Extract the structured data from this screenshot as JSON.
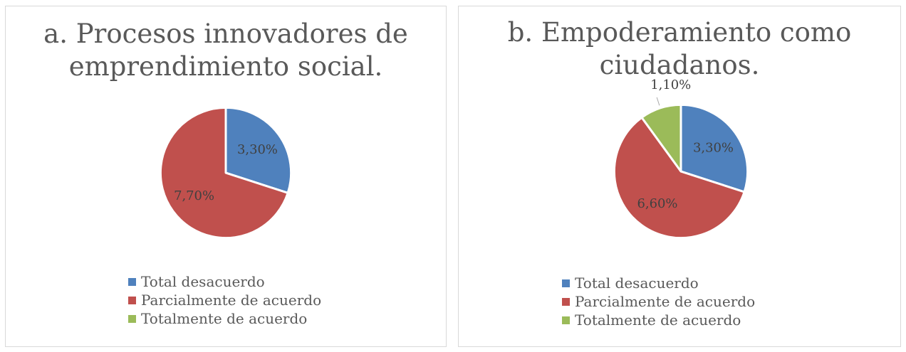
{
  "colors": {
    "total_desacuerdo": "#4f81bd",
    "parcialmente": "#c0504d",
    "totalmente": "#9bbb59"
  },
  "legend": [
    {
      "label": "Total desacuerdo",
      "color": "#4f81bd"
    },
    {
      "label": "Parcialmente de acuerdo",
      "color": "#c0504d"
    },
    {
      "label": "Totalmente de acuerdo",
      "color": "#9bbb59"
    }
  ],
  "chart_data": [
    {
      "type": "pie",
      "title_line1": "a. Procesos innovadores de",
      "title_line2": "emprendimiento social.",
      "categories": [
        "Total desacuerdo",
        "Parcialmente de acuerdo",
        "Totalmente de acuerdo"
      ],
      "values": [
        3.3,
        7.7,
        0
      ],
      "labels": [
        "3,30%",
        "7,70%",
        ""
      ],
      "legend_position": "bottom"
    },
    {
      "type": "pie",
      "title_line1": "b. Empoderamiento como",
      "title_line2": "ciudadanos.",
      "categories": [
        "Total desacuerdo",
        "Parcialmente de acuerdo",
        "Totalmente de acuerdo"
      ],
      "values": [
        3.3,
        6.6,
        1.1
      ],
      "labels": [
        "3,30%",
        "6,60%",
        "1,10%"
      ],
      "legend_position": "bottom"
    }
  ]
}
